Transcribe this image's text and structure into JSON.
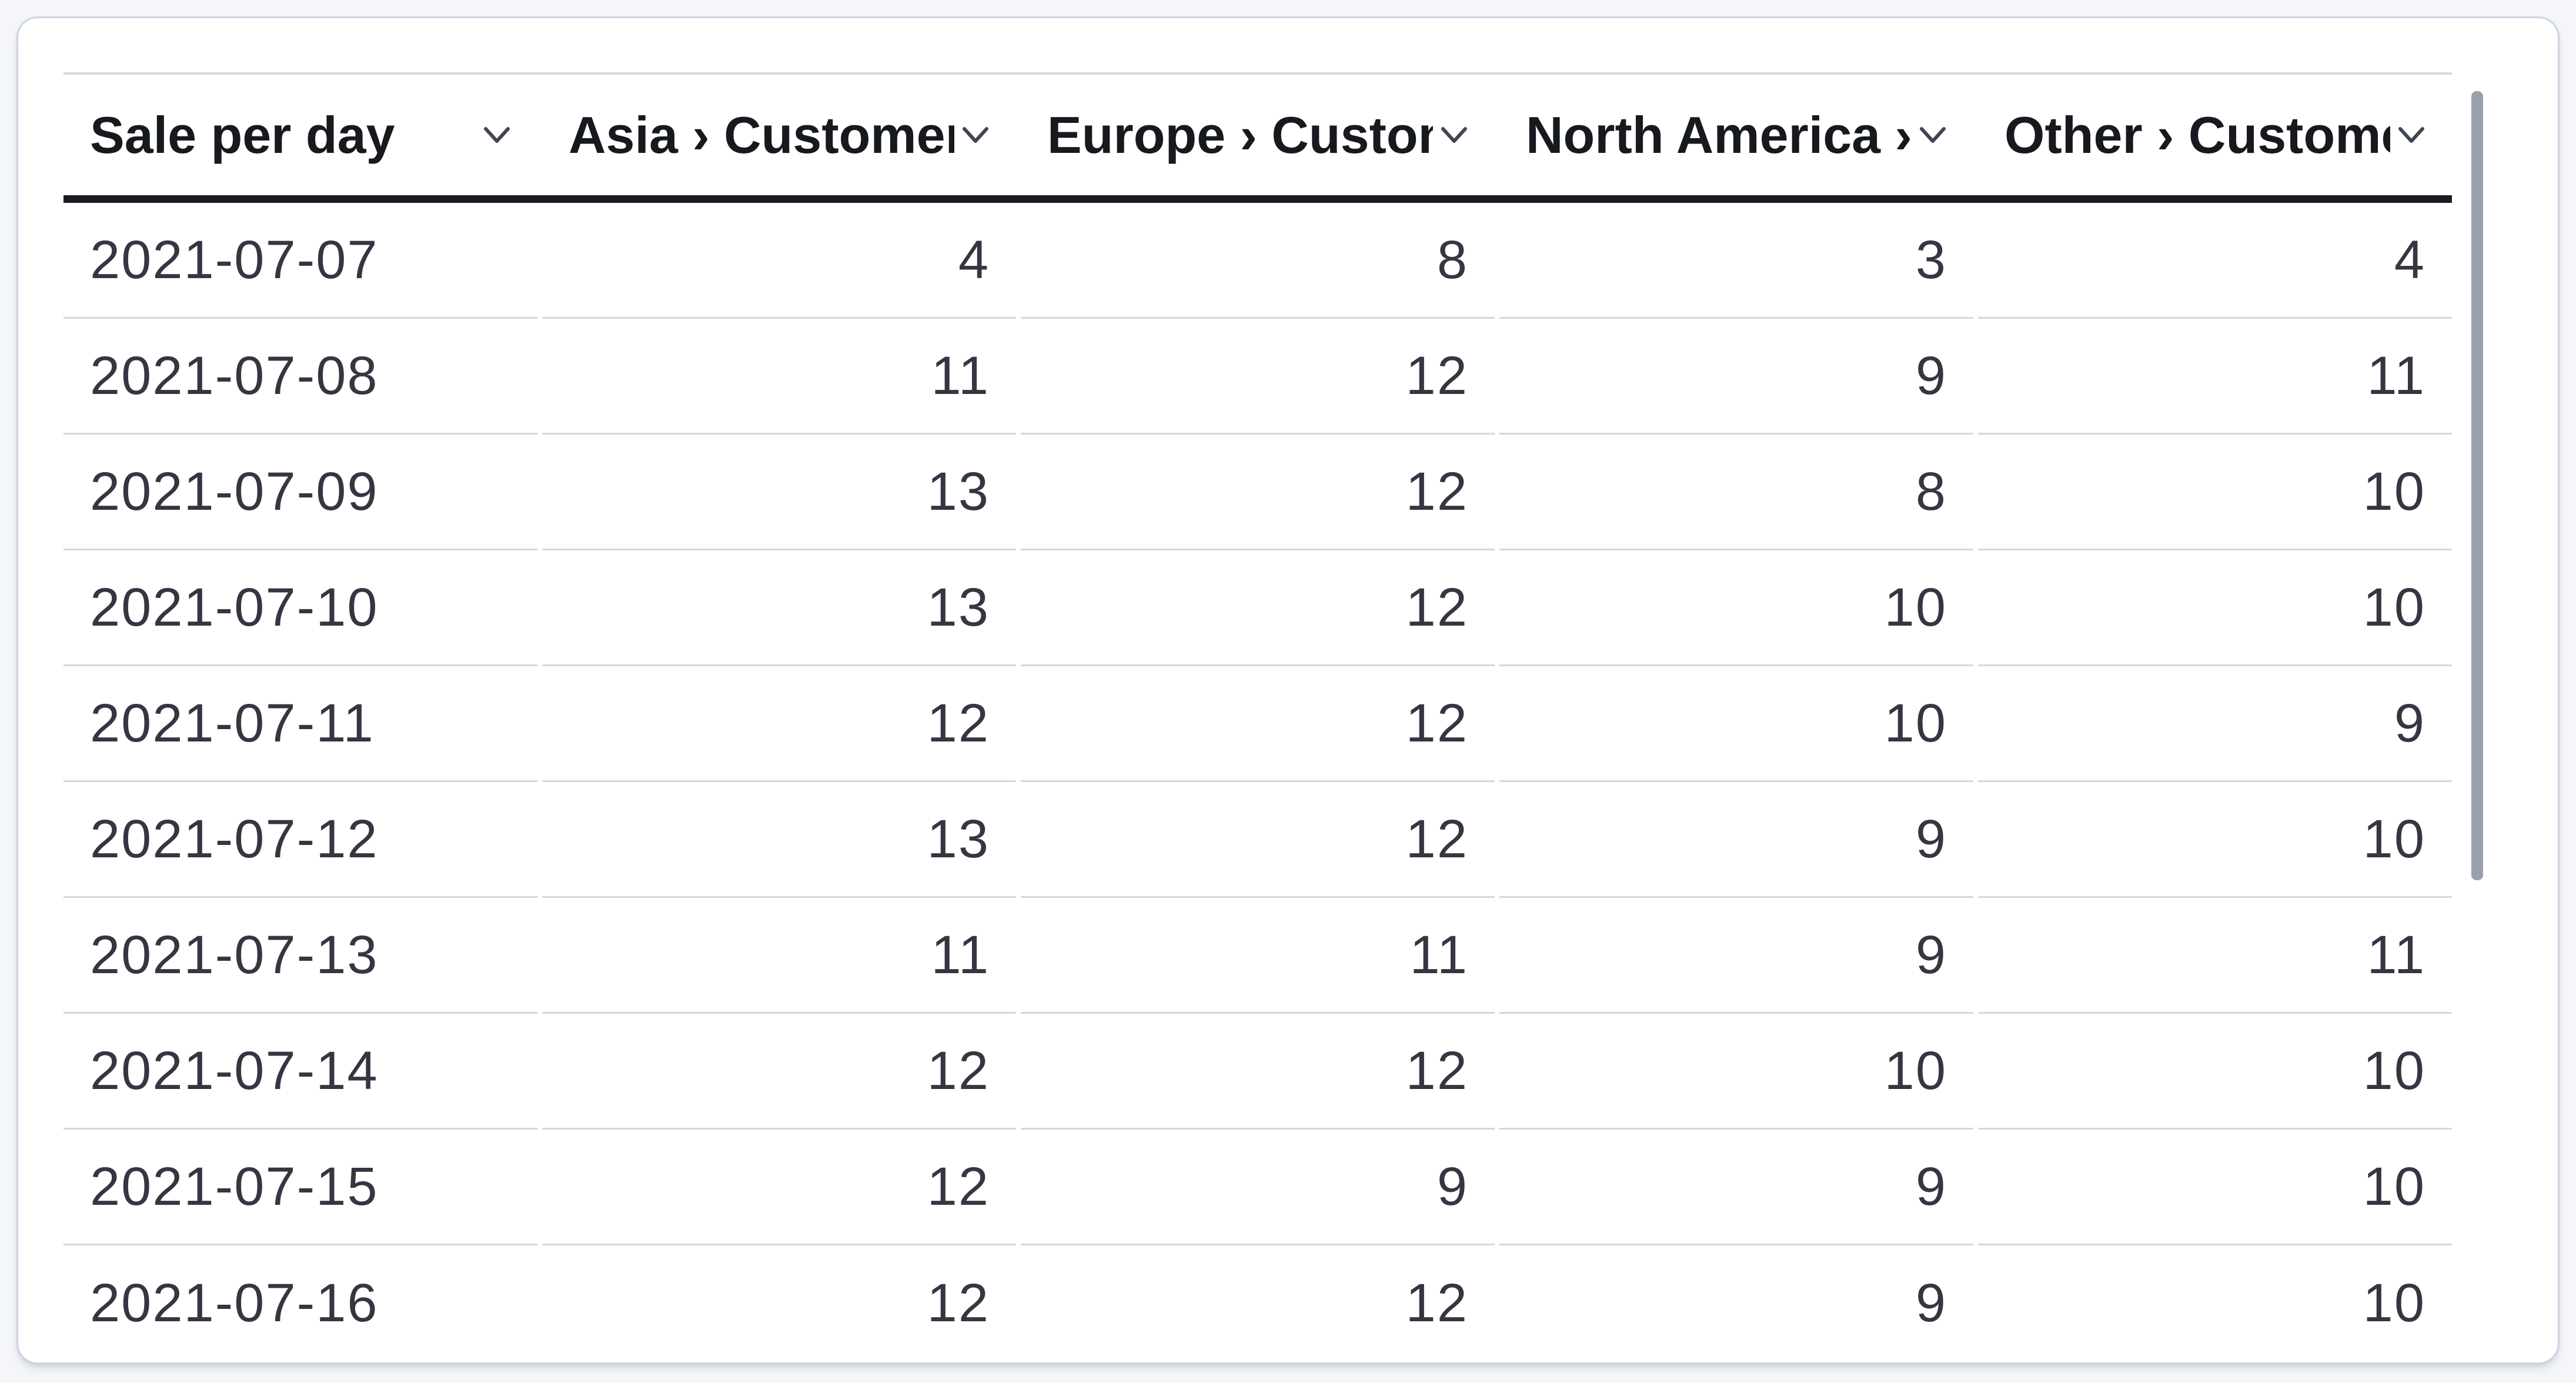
{
  "table": {
    "columns": [
      {
        "id": "sale-per-day",
        "label": "Sale per day",
        "align": "left"
      },
      {
        "id": "asia-customers",
        "label": "Asia › Customers",
        "align": "right"
      },
      {
        "id": "europe-customers",
        "label": "Europe › Customers",
        "align": "right"
      },
      {
        "id": "north-america-customers",
        "label": "North America › Customers",
        "align": "right"
      },
      {
        "id": "other-customers",
        "label": "Other › Customers",
        "align": "right"
      }
    ],
    "rows": [
      {
        "date": "2021-07-07",
        "values": [
          "4",
          "8",
          "3",
          "4"
        ]
      },
      {
        "date": "2021-07-08",
        "values": [
          "11",
          "12",
          "9",
          "11"
        ]
      },
      {
        "date": "2021-07-09",
        "values": [
          "13",
          "12",
          "8",
          "10"
        ]
      },
      {
        "date": "2021-07-10",
        "values": [
          "13",
          "12",
          "10",
          "10"
        ]
      },
      {
        "date": "2021-07-11",
        "values": [
          "12",
          "12",
          "10",
          "9"
        ]
      },
      {
        "date": "2021-07-12",
        "values": [
          "13",
          "12",
          "9",
          "10"
        ]
      },
      {
        "date": "2021-07-13",
        "values": [
          "11",
          "11",
          "9",
          "11"
        ]
      },
      {
        "date": "2021-07-14",
        "values": [
          "12",
          "12",
          "10",
          "10"
        ]
      },
      {
        "date": "2021-07-15",
        "values": [
          "12",
          "9",
          "9",
          "10"
        ]
      },
      {
        "date": "2021-07-16",
        "values": [
          "12",
          "12",
          "9",
          "10"
        ]
      }
    ]
  },
  "scrollbar": {
    "orientation": "vertical",
    "thumb_position": "top"
  },
  "icons": {
    "sort": "chevron-down-icon"
  },
  "colors": {
    "page_bg": "#f4f6f9",
    "panel_bg": "#ffffff",
    "panel_border": "#ccd4e2",
    "header_text": "#16191e",
    "header_bottom_border": "#1a1c21",
    "body_text": "#343741",
    "row_separator": "#d0d8e4",
    "scrollbar_thumb": "#98a0ab"
  }
}
